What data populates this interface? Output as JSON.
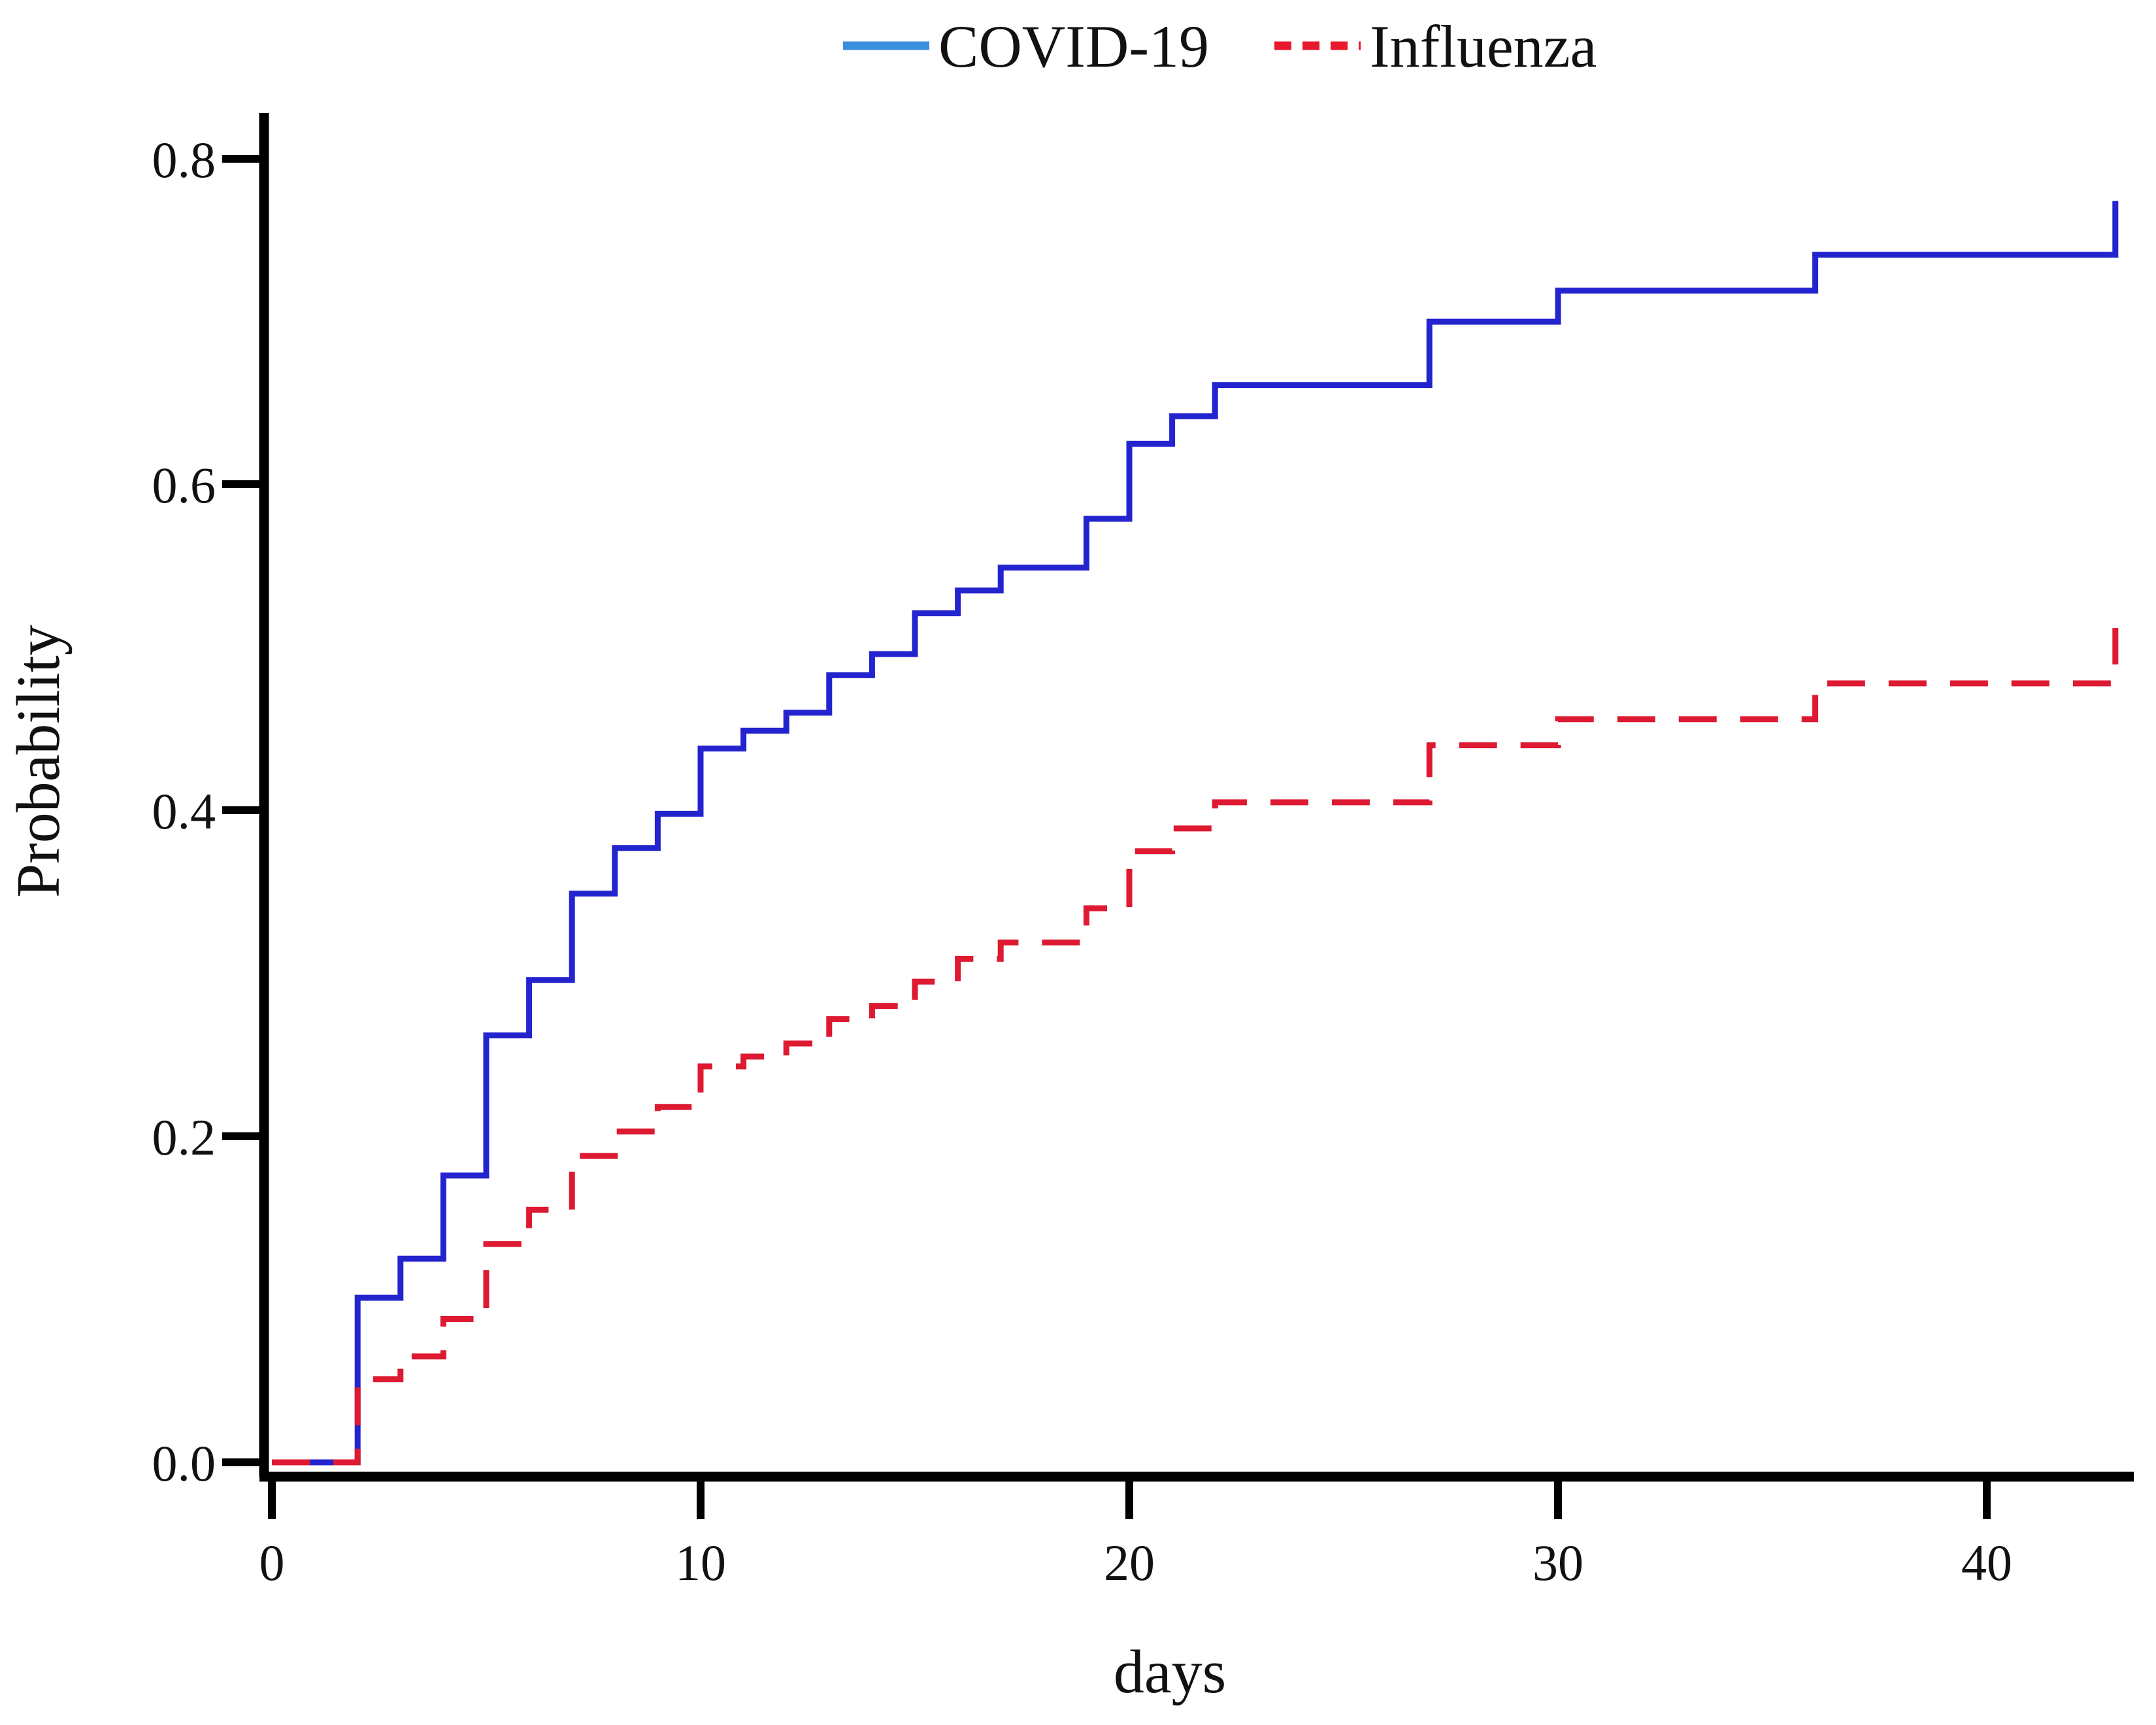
{
  "chart_data": {
    "type": "line",
    "subtype": "step",
    "title": "",
    "xlabel": "days",
    "ylabel": "Probability",
    "xlim": [
      0,
      44
    ],
    "ylim": [
      0.0,
      0.83
    ],
    "grid": false,
    "legend_position": "top-center",
    "x_tick_labels": [
      "0",
      "10",
      "20",
      "30",
      "40"
    ],
    "x_tick_values": [
      0,
      10,
      20,
      30,
      40
    ],
    "y_tick_labels": [
      "0.0",
      "0.2",
      "0.4",
      "0.6",
      "0.8"
    ],
    "y_tick_values": [
      0.0,
      0.2,
      0.4,
      0.6,
      0.8
    ],
    "series": [
      {
        "name": "COVID-19",
        "color": "#2424cf",
        "legend_color": "#3b8fe0",
        "line_style": "solid",
        "points": [
          [
            0,
            0
          ],
          [
            2,
            0.101
          ],
          [
            3,
            0.125
          ],
          [
            4,
            0.176
          ],
          [
            5,
            0.262
          ],
          [
            6,
            0.296
          ],
          [
            7,
            0.349
          ],
          [
            8,
            0.377
          ],
          [
            9,
            0.398
          ],
          [
            10,
            0.438
          ],
          [
            11,
            0.449
          ],
          [
            12,
            0.46
          ],
          [
            13,
            0.483
          ],
          [
            14,
            0.496
          ],
          [
            15,
            0.521
          ],
          [
            16,
            0.535
          ],
          [
            17,
            0.549
          ],
          [
            19,
            0.579
          ],
          [
            20,
            0.625
          ],
          [
            21,
            0.642
          ],
          [
            22,
            0.661
          ],
          [
            27,
            0.7
          ],
          [
            30,
            0.719
          ],
          [
            36,
            0.741
          ],
          [
            43,
            0.774
          ]
        ]
      },
      {
        "name": "Influenza",
        "color": "#dd1a31",
        "legend_color": "#e8192c",
        "line_style": "dashed",
        "points": [
          [
            0,
            0
          ],
          [
            2,
            0.051
          ],
          [
            3,
            0.065
          ],
          [
            4,
            0.088
          ],
          [
            5,
            0.134
          ],
          [
            6,
            0.155
          ],
          [
            7,
            0.188
          ],
          [
            8,
            0.203
          ],
          [
            9,
            0.218
          ],
          [
            10,
            0.243
          ],
          [
            11,
            0.249
          ],
          [
            12,
            0.257
          ],
          [
            13,
            0.272
          ],
          [
            14,
            0.28
          ],
          [
            15,
            0.295
          ],
          [
            16,
            0.309
          ],
          [
            17,
            0.319
          ],
          [
            19,
            0.34
          ],
          [
            20,
            0.375
          ],
          [
            21,
            0.389
          ],
          [
            22,
            0.405
          ],
          [
            27,
            0.44
          ],
          [
            30,
            0.456
          ],
          [
            36,
            0.478
          ],
          [
            43,
            0.512
          ]
        ]
      }
    ]
  }
}
